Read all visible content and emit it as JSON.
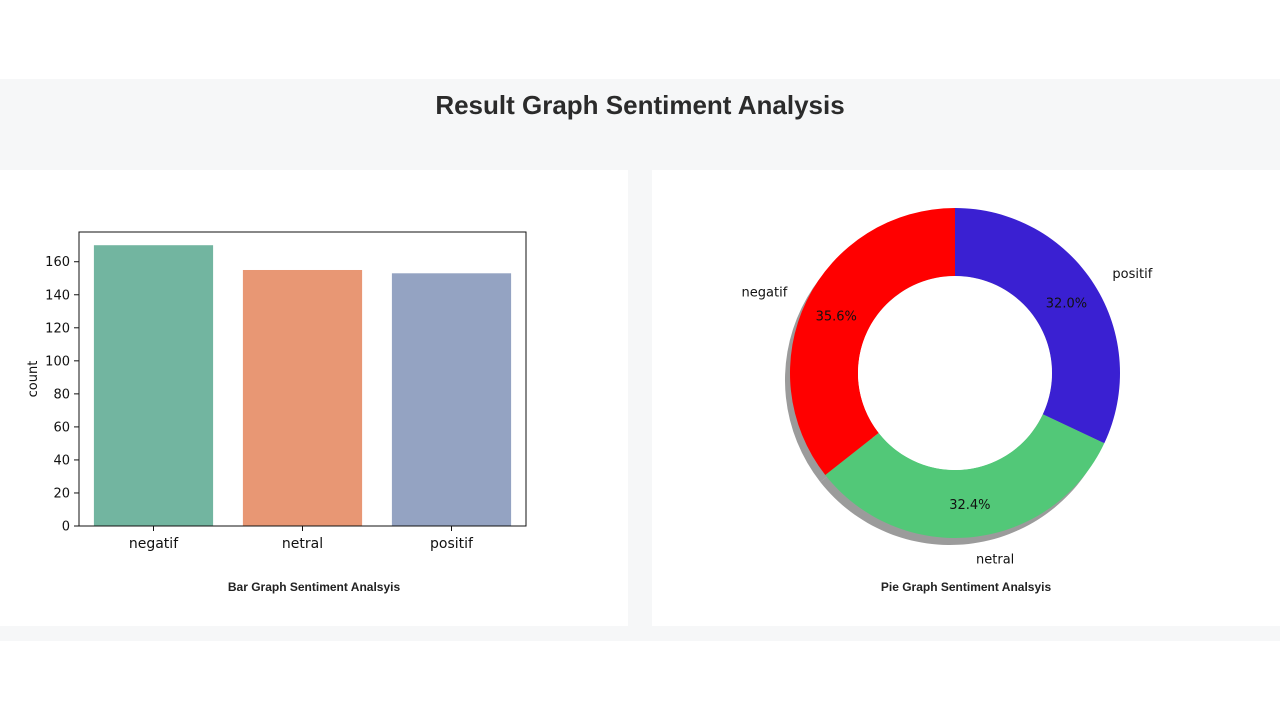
{
  "page": {
    "title": "Result Graph Sentiment Analysis"
  },
  "bar_card": {
    "caption": "Bar Graph Sentiment Analsyis"
  },
  "pie_card": {
    "caption": "Pie Graph Sentiment Analsyis"
  },
  "chart_data": [
    {
      "type": "bar",
      "categories": [
        "negatif",
        "netral",
        "positif"
      ],
      "values": [
        170,
        155,
        153
      ],
      "xlabel": "",
      "ylabel": "count",
      "ylim": [
        0,
        178
      ],
      "yticks": [
        0,
        20,
        40,
        60,
        80,
        100,
        120,
        140,
        160
      ],
      "colors": [
        "#72b5a0",
        "#e89774",
        "#94a3c2"
      ],
      "grid": false
    },
    {
      "type": "pie",
      "donut": true,
      "shadow": true,
      "labels": [
        "negatif",
        "netral",
        "positif"
      ],
      "values": [
        35.6,
        32.4,
        32.0
      ],
      "value_labels": [
        "35.6%",
        "32.4%",
        "32.0%"
      ],
      "colors": [
        "#ff0000",
        "#52c878",
        "#3a20d2"
      ]
    }
  ]
}
